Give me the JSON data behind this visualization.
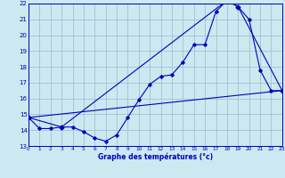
{
  "title": "Graphe des températures (°c)",
  "bg_color": "#cce8f0",
  "line_color": "#0000bb",
  "grid_color": "#99bbcc",
  "xmin": 0,
  "xmax": 23,
  "ymin": 13,
  "ymax": 22,
  "xticks": [
    0,
    1,
    2,
    3,
    4,
    5,
    6,
    7,
    8,
    9,
    10,
    11,
    12,
    13,
    14,
    15,
    16,
    17,
    18,
    19,
    20,
    21,
    22,
    23
  ],
  "yticks": [
    13,
    14,
    15,
    16,
    17,
    18,
    19,
    20,
    21,
    22
  ],
  "curve1_x": [
    0,
    1,
    2,
    3,
    4,
    5,
    6,
    7,
    8,
    9,
    10,
    11,
    12,
    13,
    14,
    15,
    16,
    17,
    18,
    19,
    20,
    21,
    22,
    23
  ],
  "curve1_y": [
    14.8,
    14.1,
    14.1,
    14.2,
    14.2,
    13.9,
    13.5,
    13.3,
    13.7,
    14.8,
    15.9,
    16.9,
    17.4,
    17.5,
    18.3,
    19.4,
    19.4,
    21.5,
    22.2,
    21.8,
    21.0,
    17.8,
    16.5,
    16.5
  ],
  "curve2_x": [
    0,
    3,
    18,
    19,
    23
  ],
  "curve2_y": [
    14.8,
    14.2,
    22.2,
    21.8,
    16.5
  ],
  "curve3_x": [
    0,
    23
  ],
  "curve3_y": [
    14.8,
    16.5
  ],
  "xlabel": "Graphe des températures (°c)"
}
